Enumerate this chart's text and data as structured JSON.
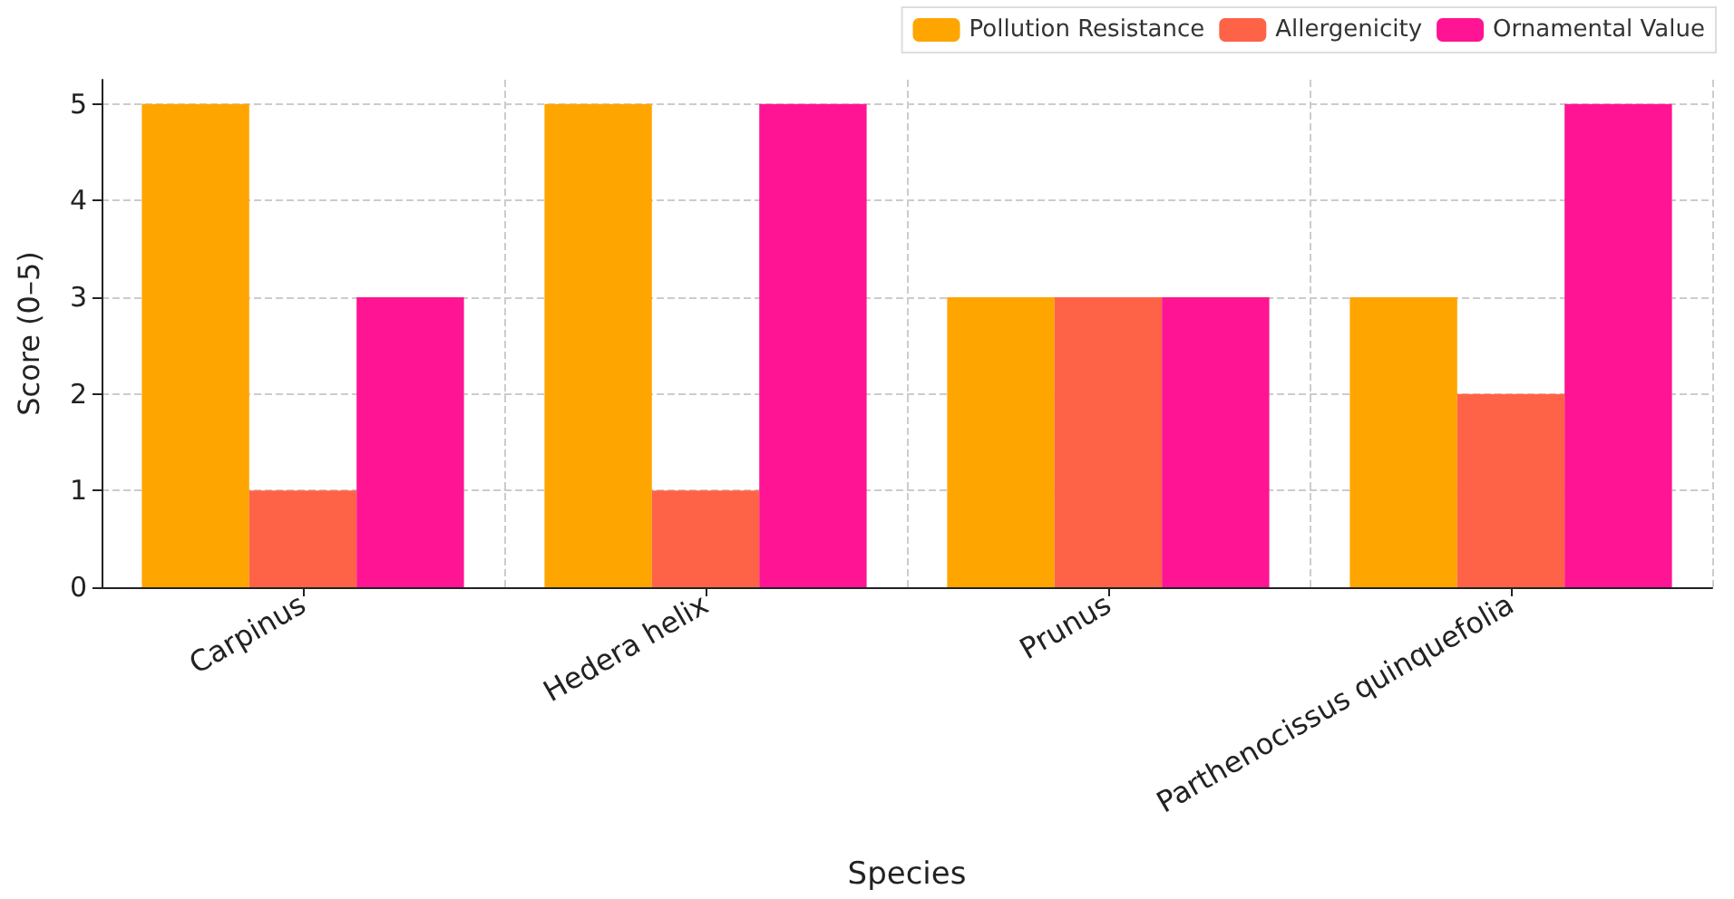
{
  "chart_data": {
    "type": "bar",
    "xlabel": "Species",
    "ylabel": "Score (0–5)",
    "categories": [
      "Carpinus",
      "Hedera helix",
      "Prunus",
      "Parthenocissus quinquefolia"
    ],
    "series": [
      {
        "name": "Pollution Resistance",
        "color": "#ffa500",
        "values": [
          5,
          5,
          3,
          3
        ]
      },
      {
        "name": "Allergenicity",
        "color": "#ff6347",
        "values": [
          1,
          1,
          3,
          2
        ]
      },
      {
        "name": "Ornamental Value",
        "color": "#ff1493",
        "values": [
          3,
          5,
          3,
          5
        ]
      }
    ],
    "ylim": [
      0,
      5.25
    ],
    "yticks": [
      0,
      1,
      2,
      3,
      4,
      5
    ],
    "grid": true,
    "legend": "top right"
  }
}
